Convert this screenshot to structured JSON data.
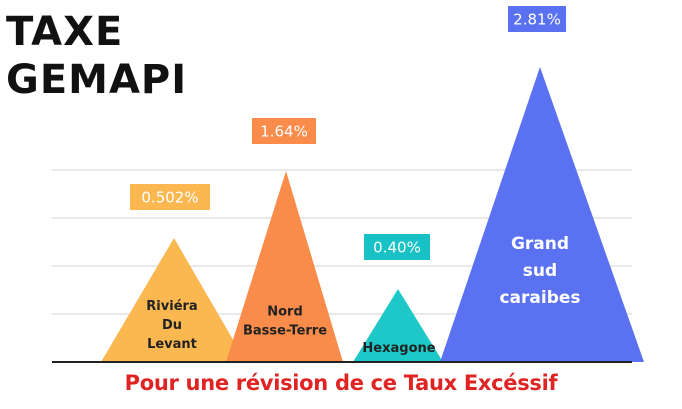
{
  "title": {
    "line1": "TAXE",
    "line2": "GEMAPI"
  },
  "footer": "Pour une révision de ce Taux Excéssif",
  "chart_data": {
    "type": "bar",
    "shape": "triangle",
    "unit": "%",
    "categories": [
      {
        "lines": [
          "Riviéra",
          "Du",
          "Levant"
        ],
        "value": 0.502,
        "label": "0.502%",
        "color": "#fbb750",
        "badge_color": "#fbb750"
      },
      {
        "lines": [
          "Nord",
          "Basse-Terre"
        ],
        "value": 1.64,
        "label": "1.64%",
        "color": "#f98c4a",
        "badge_color": "#f98c4a"
      },
      {
        "lines": [
          "Hexagone"
        ],
        "value": 0.4,
        "label": "0.40%",
        "color": "#1ec8c8",
        "badge_color": "#17c1c6"
      },
      {
        "lines": [
          "Grand",
          "sud",
          "caraibes"
        ],
        "value": 2.81,
        "label": "2.81%",
        "color": "#5a71f2",
        "badge_color": "#5a71f2"
      }
    ],
    "gridlines": true,
    "legend": false
  }
}
